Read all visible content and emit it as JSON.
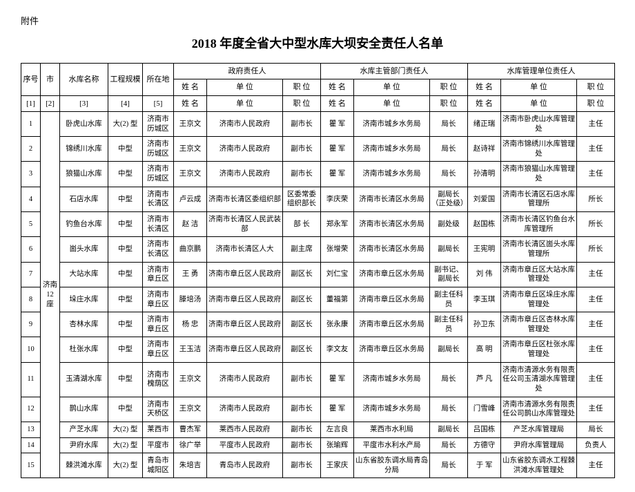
{
  "attachment_label": "附件",
  "title": "2018 年度全省大中型水库大坝安全责任人名单",
  "header": {
    "seq": "序号",
    "city": "市",
    "reservoir_name": "水库名称",
    "scale": "工程规模",
    "location": "所在地",
    "gov_group": "政府责任人",
    "dept_group": "水库主管部门责任人",
    "mgmt_group": "水库管理单位责任人",
    "name": "姓 名",
    "unit": "单 位",
    "position": "职 位",
    "b1": "[1]",
    "b2": "[2]",
    "b3": "[3]",
    "b4": "[4]",
    "b5": "[5]"
  },
  "city_merge": "济南 12 座",
  "rows": [
    {
      "seq": "1",
      "name": "卧虎山水库",
      "scale": "大(2) 型",
      "loc": "济南市历城区",
      "g_name": "王京文",
      "g_unit": "济南市人民政府",
      "g_pos": "副市长",
      "d_name": "瞿 军",
      "d_unit": "济南市城乡水务局",
      "d_pos": "局长",
      "m_name": "绪正瑞",
      "m_unit": "济南市卧虎山水库管理处",
      "m_pos": "主任"
    },
    {
      "seq": "2",
      "name": "锦绣川水库",
      "scale": "中型",
      "loc": "济南市历城区",
      "g_name": "王京文",
      "g_unit": "济南市人民政府",
      "g_pos": "副市长",
      "d_name": "瞿 军",
      "d_unit": "济南市城乡水务局",
      "d_pos": "局长",
      "m_name": "赵诗祥",
      "m_unit": "济南市锦绣川水库管理处",
      "m_pos": "主任"
    },
    {
      "seq": "3",
      "name": "狼猫山水库",
      "scale": "中型",
      "loc": "济南市历城区",
      "g_name": "王京文",
      "g_unit": "济南市人民政府",
      "g_pos": "副市长",
      "d_name": "瞿 军",
      "d_unit": "济南市城乡水务局",
      "d_pos": "局长",
      "m_name": "孙清明",
      "m_unit": "济南市狼猫山水库管理处",
      "m_pos": "主任"
    },
    {
      "seq": "4",
      "name": "石店水库",
      "scale": "中型",
      "loc": "济南市长清区",
      "g_name": "卢云成",
      "g_unit": "济南市长清区委组织部",
      "g_pos": "区委常委组织部长",
      "d_name": "李庆荣",
      "d_unit": "济南市长清区水务局",
      "d_pos": "副局长（正处级）",
      "m_name": "刘爱国",
      "m_unit": "济南市长清区石店水库管理所",
      "m_pos": "所长"
    },
    {
      "seq": "5",
      "name": "钓鱼台水库",
      "scale": "中型",
      "loc": "济南市长清区",
      "g_name": "赵 洁",
      "g_unit": "济南市长清区人民武装部",
      "g_pos": "部 长",
      "d_name": "郑永军",
      "d_unit": "济南市长清区水务局",
      "d_pos": "副处级",
      "m_name": "赵国栋",
      "m_unit": "济南市长清区钓鱼台水库管理所",
      "m_pos": "所长"
    },
    {
      "seq": "6",
      "name": "崮头水库",
      "scale": "中型",
      "loc": "济南市长清区",
      "g_name": "曲京鹏",
      "g_unit": "济南市长清区人大",
      "g_pos": "副主席",
      "d_name": "张增荣",
      "d_unit": "济南市长清区水务局",
      "d_pos": "副局长",
      "m_name": "王宪明",
      "m_unit": "济南市长清区崮头水库管理所",
      "m_pos": "所长"
    },
    {
      "seq": "7",
      "name": "大站水库",
      "scale": "中型",
      "loc": "济南市章丘区",
      "g_name": "王 勇",
      "g_unit": "济南市章丘区人民政府",
      "g_pos": "副区长",
      "d_name": "刘仁宝",
      "d_unit": "济南市章丘区水务局",
      "d_pos": "副书记、副局长",
      "m_name": "刘 伟",
      "m_unit": "济南市章丘区大站水库管理处",
      "m_pos": "主任"
    },
    {
      "seq": "8",
      "name": "垛庄水库",
      "scale": "中型",
      "loc": "济南市章丘区",
      "g_name": "滕培汤",
      "g_unit": "济南市章丘区人民政府",
      "g_pos": "副区长",
      "d_name": "董福第",
      "d_unit": "济南市章丘区水务局",
      "d_pos": "副主任科员",
      "m_name": "李玉琪",
      "m_unit": "济南市章丘区垛庄水库管理处",
      "m_pos": "主任"
    },
    {
      "seq": "9",
      "name": "杏林水库",
      "scale": "中型",
      "loc": "济南市章丘区",
      "g_name": "杨 忠",
      "g_unit": "济南市章丘区人民政府",
      "g_pos": "副区长",
      "d_name": "张永康",
      "d_unit": "济南市章丘区水务局",
      "d_pos": "副主任科员",
      "m_name": "孙卫东",
      "m_unit": "济南市章丘区杏林水库管理处",
      "m_pos": "主任"
    },
    {
      "seq": "10",
      "name": "杜张水库",
      "scale": "中型",
      "loc": "济南市章丘区",
      "g_name": "王玉洁",
      "g_unit": "济南市章丘区人民政府",
      "g_pos": "副区长",
      "d_name": "李文友",
      "d_unit": "济南市章丘区水务局",
      "d_pos": "副局长",
      "m_name": "高 明",
      "m_unit": "济南市章丘区杜张水库管理处",
      "m_pos": "主任"
    },
    {
      "seq": "11",
      "name": "玉清湖水库",
      "scale": "中型",
      "loc": "济南市槐荫区",
      "g_name": "王京文",
      "g_unit": "济南市人民政府",
      "g_pos": "副市长",
      "d_name": "瞿 军",
      "d_unit": "济南市城乡水务局",
      "d_pos": "局长",
      "m_name": "芦 凡",
      "m_unit": "济南市清源水务有限责任公司玉清湖水库管理处",
      "m_pos": "主任"
    },
    {
      "seq": "12",
      "name": "鹊山水库",
      "scale": "中型",
      "loc": "济南市天桥区",
      "g_name": "王京文",
      "g_unit": "济南市人民政府",
      "g_pos": "副市长",
      "d_name": "瞿 军",
      "d_unit": "济南市城乡水务局",
      "d_pos": "局长",
      "m_name": "门雪峰",
      "m_unit": "济南市清源水务有限责任公司鹊山水库管理处",
      "m_pos": "主任"
    },
    {
      "seq": "13",
      "name": "产芝水库",
      "scale": "大(2) 型",
      "loc": "莱西市",
      "g_name": "曹杰军",
      "g_unit": "莱西市人民政府",
      "g_pos": "副市长",
      "d_name": "左言良",
      "d_unit": "莱西市水利局",
      "d_pos": "副局长",
      "m_name": "吕国栋",
      "m_unit": "产芝水库管理局",
      "m_pos": "局长"
    },
    {
      "seq": "14",
      "name": "尹府水库",
      "scale": "大(2) 型",
      "loc": "平度市",
      "g_name": "徐广举",
      "g_unit": "平度市人民政府",
      "g_pos": "副市长",
      "d_name": "张瑜辉",
      "d_unit": "平度市水利水产局",
      "d_pos": "局长",
      "m_name": "方德守",
      "m_unit": "尹府水库管理局",
      "m_pos": "负责人"
    },
    {
      "seq": "15",
      "name": "棘洪滩水库",
      "scale": "大(2) 型",
      "loc": "青岛市城阳区",
      "g_name": "朱培吉",
      "g_unit": "青岛市人民政府",
      "g_pos": "副市长",
      "d_name": "王家庆",
      "d_unit": "山东省胶东调水局青岛分局",
      "d_pos": "局长",
      "m_name": "于 军",
      "m_unit": "山东省胶东调水工程棘洪滩水库管理处",
      "m_pos": "主任"
    }
  ]
}
